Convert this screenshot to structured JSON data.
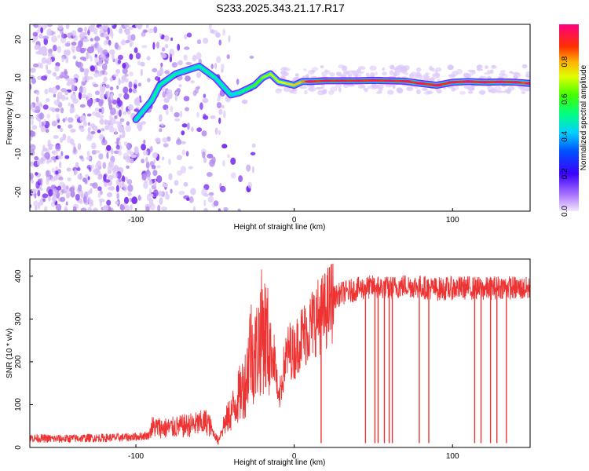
{
  "title": "S233.2025.343.21.17.R17",
  "colors": {
    "snr_line": "#ee3333",
    "ridge_low": "#6a00ff",
    "scatter_faint": "#dcc8f8",
    "scatter_mid": "#b48cf0",
    "scatter_dark": "#7a2ef0"
  },
  "chart_data": [
    {
      "type": "heatmap",
      "name": "spectrogram",
      "xlabel": "Height of straight line (km)",
      "ylabel": "Frequency (Hz)",
      "xlim": [
        -167,
        149
      ],
      "ylim": [
        -25,
        24
      ],
      "xticks": [
        "-100",
        "0",
        "100"
      ],
      "yticks": [
        "20",
        "10",
        "0",
        "-10",
        "-20"
      ],
      "xtick_values": [
        -100,
        0,
        100
      ],
      "ytick_values": [
        20,
        10,
        0,
        -10,
        -20
      ],
      "ridge": {
        "x": [
          -100,
          -90,
          -85,
          -75,
          -60,
          -50,
          -40,
          -35,
          -30,
          -25,
          -20,
          -15,
          -10,
          -5,
          0,
          5,
          10,
          20,
          30,
          40,
          50,
          60,
          70,
          80,
          90,
          100,
          110,
          120,
          130,
          140,
          149
        ],
        "y": [
          -1,
          4,
          8,
          11,
          13,
          10,
          5.5,
          6,
          7,
          8,
          10,
          11,
          9,
          8.5,
          8,
          9,
          9,
          9.2,
          9.2,
          9.2,
          9.3,
          9.2,
          9.1,
          8.5,
          8,
          8.8,
          9,
          8.8,
          8.9,
          8.8,
          8.5
        ],
        "amplitude": [
          0.45,
          0.5,
          0.5,
          0.5,
          0.45,
          0.55,
          0.4,
          0.5,
          0.55,
          0.6,
          0.65,
          0.7,
          0.7,
          0.75,
          0.75,
          0.8,
          0.85,
          0.9,
          0.9,
          0.9,
          0.9,
          0.9,
          0.9,
          0.88,
          0.88,
          0.9,
          0.9,
          0.9,
          0.9,
          0.88,
          0.85
        ]
      }
    },
    {
      "type": "colorbar",
      "name": "colorbar",
      "label": "Normalized spectral amplitude",
      "range": [
        0,
        1
      ],
      "ticks": [
        "0.0",
        "0.2",
        "0.4",
        "0.6",
        "0.8"
      ],
      "tick_values": [
        0.0,
        0.2,
        0.4,
        0.6,
        0.8
      ]
    },
    {
      "type": "line",
      "name": "snr",
      "xlabel": "Height of straight line (km)",
      "ylabel": "SNR (10 * v/v)",
      "xlim": [
        -167,
        149
      ],
      "ylim": [
        0,
        440
      ],
      "xticks": [
        "-100",
        "0",
        "100"
      ],
      "yticks": [
        "0",
        "100",
        "200",
        "300",
        "400"
      ],
      "xtick_values": [
        -100,
        0,
        100
      ],
      "ytick_values": [
        0,
        100,
        200,
        300,
        400
      ],
      "series": [
        {
          "name": "SNR",
          "x": [
            -167,
            -150,
            -130,
            -110,
            -100,
            -92,
            -90,
            -80,
            -70,
            -60,
            -55,
            -48,
            -45,
            -40,
            -35,
            -30,
            -28,
            -25,
            -22,
            -20,
            -15,
            -12,
            -10,
            -8,
            -6,
            -3,
            0,
            3,
            5,
            8,
            10,
            13,
            15,
            20,
            25,
            30,
            40,
            50,
            60,
            70,
            80,
            90,
            100,
            110,
            120,
            130,
            140,
            149
          ],
          "y": [
            22,
            20,
            22,
            23,
            25,
            28,
            48,
            45,
            50,
            55,
            60,
            15,
            50,
            80,
            120,
            160,
            240,
            210,
            250,
            280,
            230,
            200,
            100,
            150,
            200,
            230,
            220,
            250,
            260,
            270,
            280,
            300,
            305,
            320,
            350,
            360,
            370,
            375,
            372,
            378,
            375,
            370,
            372,
            373,
            370,
            375,
            372,
            370
          ]
        }
      ],
      "dropouts": [
        {
          "x": 17,
          "y": 10
        },
        {
          "x": 45,
          "y": 10
        },
        {
          "x": 51,
          "y": 10
        },
        {
          "x": 53,
          "y": 10
        },
        {
          "x": 57,
          "y": 10
        },
        {
          "x": 60,
          "y": 10
        },
        {
          "x": 62,
          "y": 10
        },
        {
          "x": 79,
          "y": 10
        },
        {
          "x": 85,
          "y": 10
        },
        {
          "x": 114,
          "y": 10
        },
        {
          "x": 118,
          "y": 10
        },
        {
          "x": 124,
          "y": 10
        },
        {
          "x": 128,
          "y": 10
        },
        {
          "x": 134,
          "y": 10
        }
      ]
    }
  ]
}
